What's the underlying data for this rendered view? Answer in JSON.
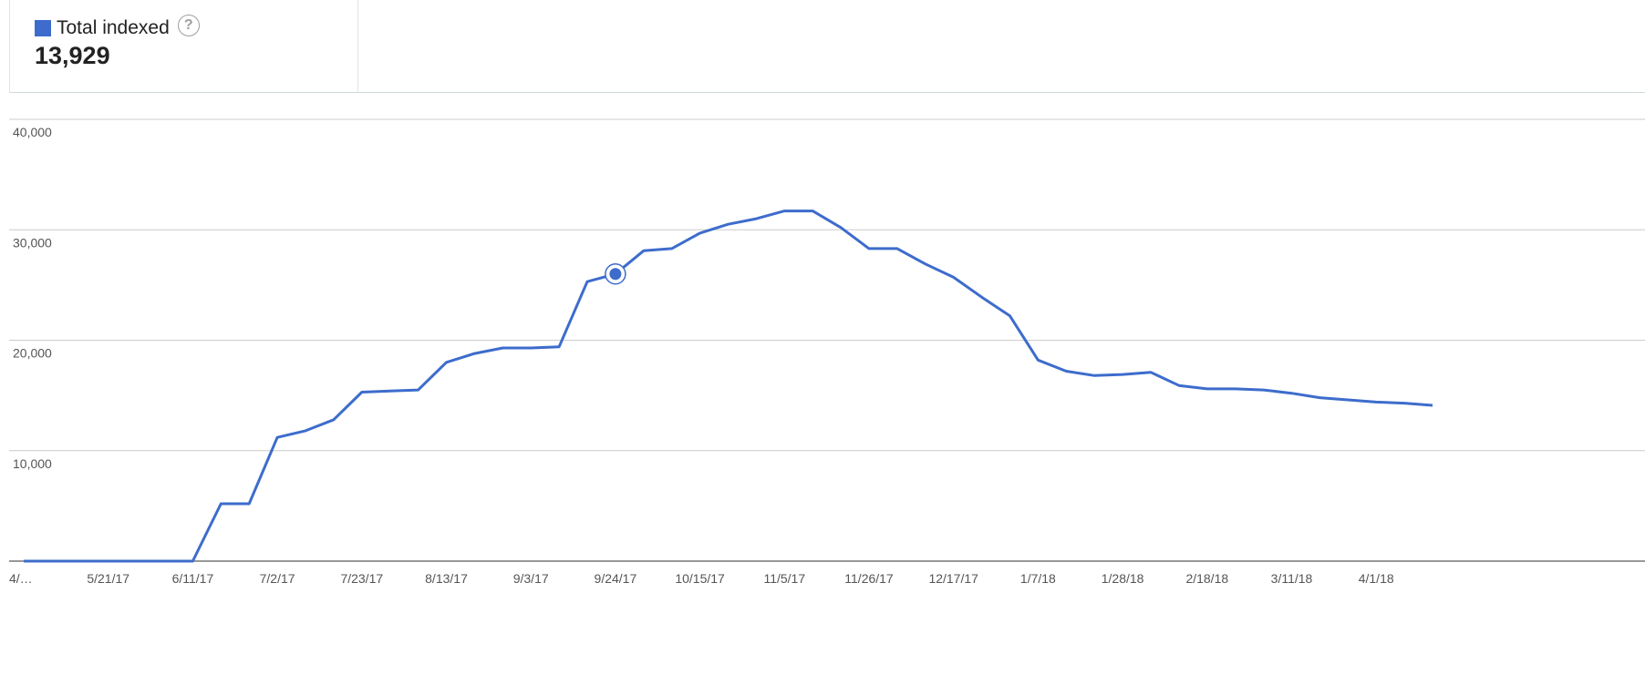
{
  "summary": {
    "metric_label": "Total indexed",
    "metric_value": "13,929",
    "help_symbol": "?",
    "swatch_color": "#3d6ccc"
  },
  "chart_data": {
    "type": "line",
    "title": "",
    "xlabel": "",
    "ylabel": "",
    "ylim": [
      0,
      40000
    ],
    "grid": true,
    "y_ticks": [
      "10,000",
      "20,000",
      "30,000",
      "40,000"
    ],
    "y_tick_values": [
      10000,
      20000,
      30000,
      40000
    ],
    "x_tick_labels": [
      "4/…",
      "5/21/17",
      "6/11/17",
      "7/2/17",
      "7/23/17",
      "8/13/17",
      "9/3/17",
      "9/24/17",
      "10/15/17",
      "11/5/17",
      "11/26/17",
      "12/17/17",
      "1/7/18",
      "1/28/18",
      "2/18/18",
      "3/11/18",
      "4/1/18"
    ],
    "x_tick_index": [
      0,
      3,
      6,
      9,
      12,
      15,
      18,
      21,
      24,
      27,
      30,
      33,
      36,
      39,
      42,
      45,
      48
    ],
    "highlight_index": 21,
    "series": [
      {
        "name": "Total indexed",
        "color": "#3d6ccc",
        "values": [
          0,
          0,
          0,
          0,
          0,
          0,
          0,
          5200,
          5200,
          11200,
          11800,
          12800,
          15300,
          15400,
          15500,
          18000,
          18800,
          19300,
          19300,
          19400,
          25300,
          26000,
          28100,
          28300,
          29700,
          30500,
          31000,
          31700,
          31700,
          30200,
          28300,
          28300,
          26900,
          25700,
          23900,
          22200,
          18200,
          17200,
          16800,
          16900,
          17100,
          15900,
          15600,
          15600,
          15500,
          15200,
          14800,
          14600,
          14400,
          14300,
          14100
        ]
      }
    ]
  }
}
